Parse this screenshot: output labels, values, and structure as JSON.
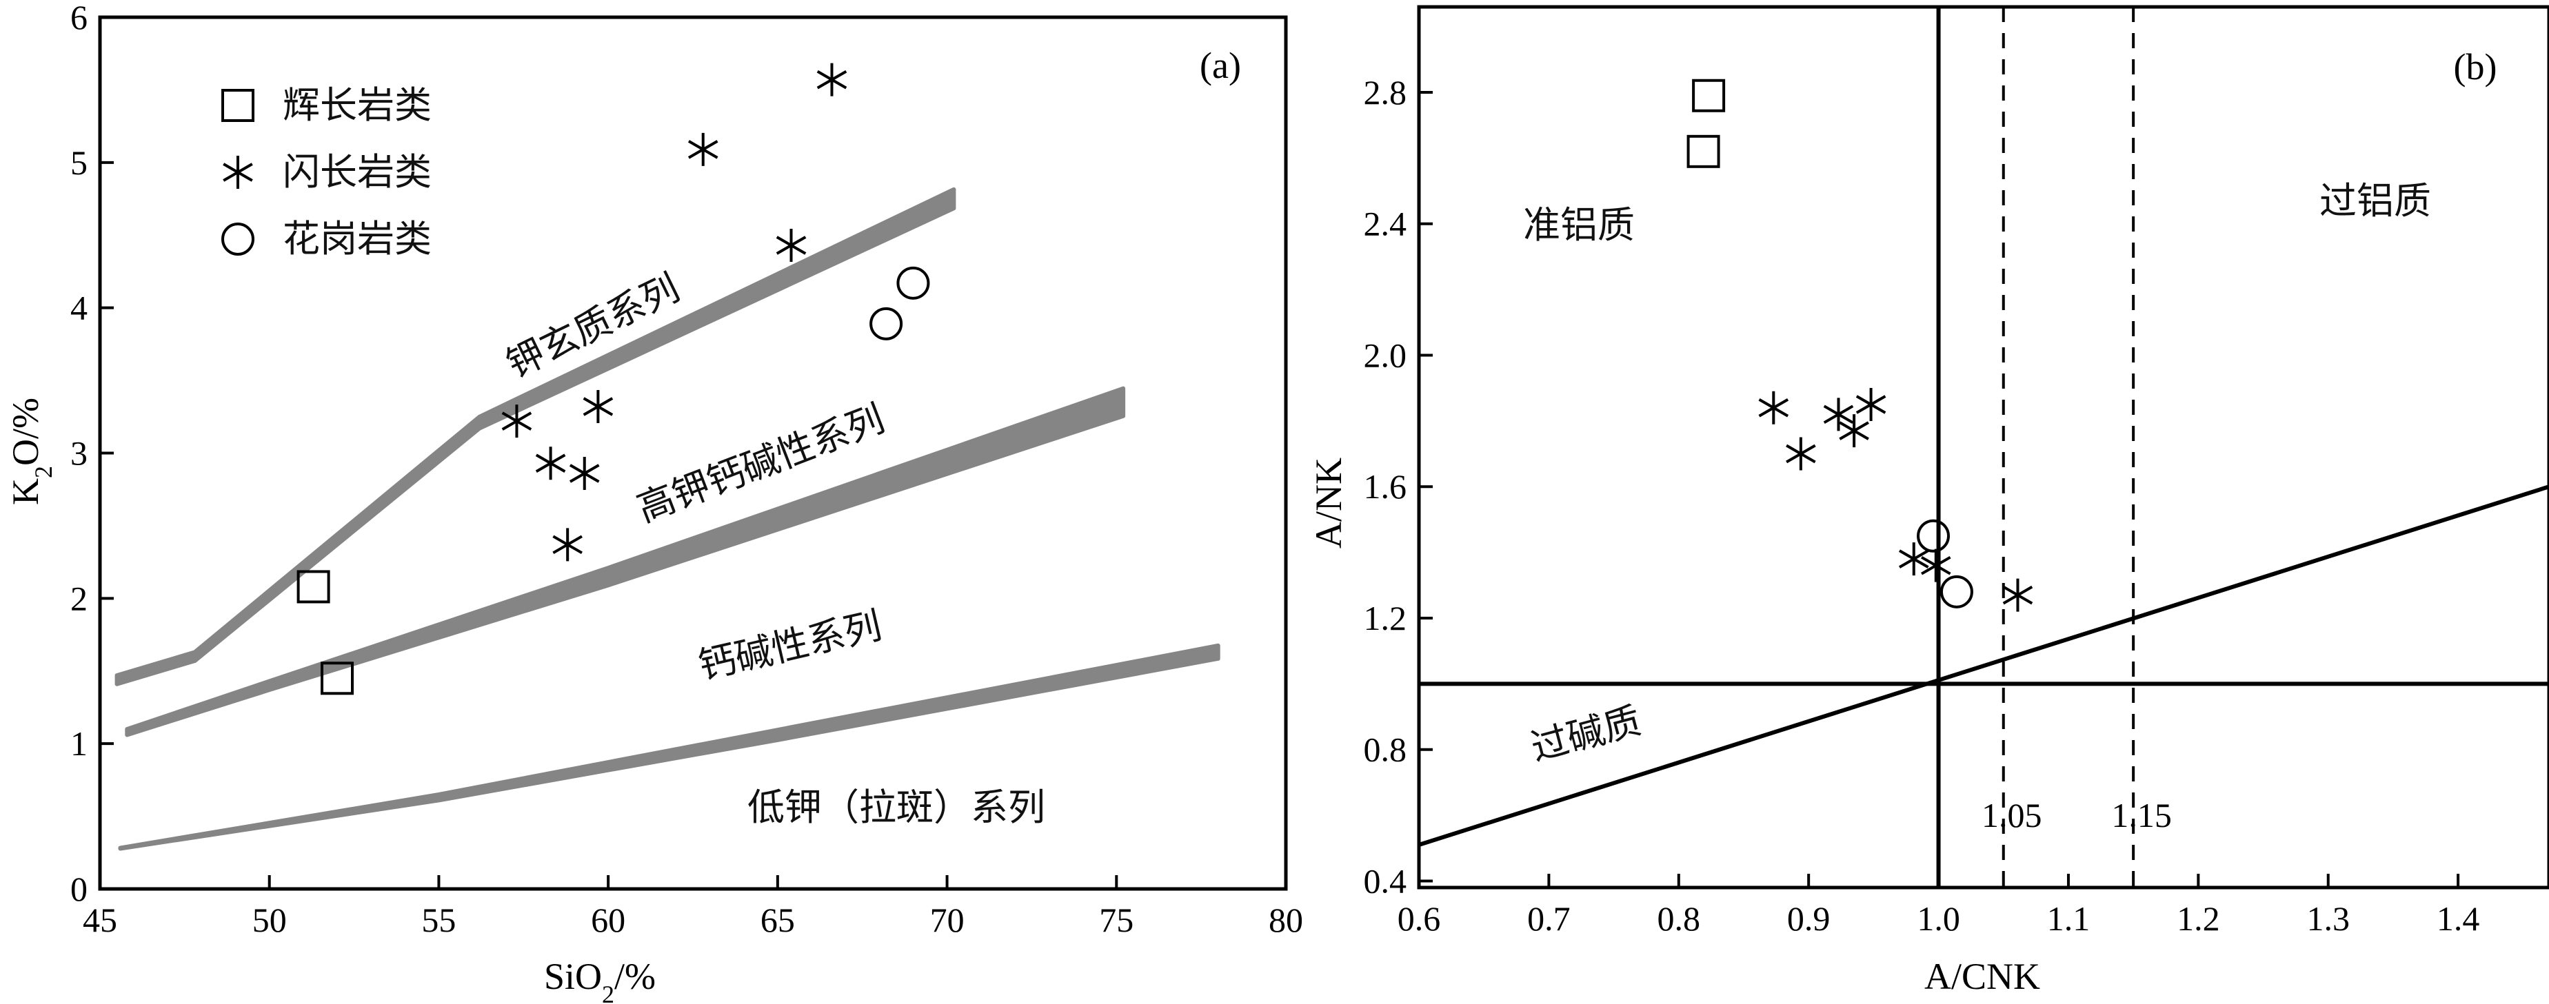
{
  "figure": {
    "panels": [
      {
        "id": "a",
        "label": "(a)",
        "xlabel": "SiO2/%",
        "ylabel": "K2O/%",
        "xlim": [
          45,
          80
        ],
        "ylim": [
          0,
          6
        ],
        "xticks": [
          45,
          50,
          55,
          60,
          65,
          70,
          75,
          80
        ],
        "yticks": [
          0,
          1,
          2,
          3,
          4,
          5,
          6
        ],
        "legend": [
          {
            "label": "辉长岩类",
            "marker": "square"
          },
          {
            "label": "闪长岩类",
            "marker": "asterisk"
          },
          {
            "label": "花岗岩类",
            "marker": "circle"
          }
        ],
        "series_labels": [
          "钾玄质系列",
          "高钾钙碱性系列",
          "钙碱性系列",
          "低钾（拉斑）系列"
        ]
      },
      {
        "id": "b",
        "label": "(b)",
        "xlabel": "A/CNK",
        "ylabel": "A/NK",
        "xlim": [
          0.6,
          1.47
        ],
        "ylim": [
          0.38,
          3.06
        ],
        "xticks": [
          0.6,
          0.7,
          0.8,
          0.9,
          1.0,
          1.1,
          1.2,
          1.3,
          1.4
        ],
        "yticks": [
          0.4,
          0.8,
          1.2,
          1.6,
          2.0,
          2.4,
          2.8
        ],
        "region_labels": [
          "准铝质",
          "过铝质",
          "过碱质"
        ],
        "line_labels": [
          "1.05",
          "1.15"
        ]
      }
    ]
  },
  "chart_data": [
    {
      "type": "scatter",
      "panel": "a",
      "xlabel": "SiO2/%",
      "ylabel": "K2O/%",
      "xlim": [
        45,
        80
      ],
      "ylim": [
        0,
        6
      ],
      "grid": false,
      "legend_position": "top-left",
      "series": [
        {
          "name": "辉长岩类",
          "marker": "square",
          "x": [
            51.3,
            52.0
          ],
          "y": [
            2.08,
            1.45
          ]
        },
        {
          "name": "闪长岩类",
          "marker": "asterisk",
          "x": [
            57.3,
            58.3,
            58.8,
            59.3,
            59.7,
            62.8,
            65.4,
            66.6
          ],
          "y": [
            3.22,
            2.93,
            2.37,
            2.86,
            3.32,
            5.09,
            4.43,
            5.57
          ]
        },
        {
          "name": "花岗岩类",
          "marker": "circle",
          "x": [
            68.2,
            69.0
          ],
          "y": [
            3.89,
            4.17
          ]
        }
      ],
      "boundaries": [
        {
          "label": "钾玄质系列",
          "x": [
            45.5,
            47.8,
            56.2,
            70.2
          ],
          "y": [
            1.44,
            1.6,
            3.21,
            4.75
          ],
          "thickness": [
            0.06,
            0.06,
            0.08,
            0.13
          ]
        },
        {
          "label": "高钾钙碱性系列",
          "x": [
            45.8,
            50.0,
            60.0,
            75.2
          ],
          "y": [
            1.08,
            1.4,
            2.15,
            3.35
          ],
          "thickness": [
            0.04,
            0.06,
            0.12,
            0.19
          ]
        },
        {
          "label": "钙碱性系列",
          "x": [
            45.6,
            55.0,
            65.0,
            78.0
          ],
          "y": [
            0.28,
            0.63,
            1.06,
            1.63
          ],
          "thickness": [
            0.005,
            0.04,
            0.07,
            0.09
          ]
        }
      ]
    },
    {
      "type": "scatter",
      "panel": "b",
      "xlabel": "A/CNK",
      "ylabel": "A/NK",
      "xlim": [
        0.6,
        1.47
      ],
      "ylim": [
        0.38,
        3.06
      ],
      "grid": false,
      "series": [
        {
          "name": "辉长岩类",
          "marker": "square",
          "x": [
            0.823,
            0.819
          ],
          "y": [
            2.79,
            2.62
          ]
        },
        {
          "name": "闪长岩类",
          "marker": "asterisk",
          "x": [
            0.873,
            0.894,
            0.923,
            0.935,
            0.948,
            0.981,
            0.998,
            1.061
          ],
          "y": [
            1.84,
            1.7,
            1.82,
            1.77,
            1.85,
            1.38,
            1.36,
            1.27
          ]
        },
        {
          "name": "花岗岩类",
          "marker": "circle",
          "x": [
            0.996,
            1.014
          ],
          "y": [
            1.45,
            1.28
          ]
        }
      ],
      "reference_lines": [
        {
          "type": "vertical",
          "x": 1.0,
          "style": "solid"
        },
        {
          "type": "horizontal",
          "y": 1.0,
          "style": "solid"
        },
        {
          "type": "vertical",
          "x": 1.05,
          "style": "dashed",
          "label": "1.05"
        },
        {
          "type": "vertical",
          "x": 1.15,
          "style": "dashed",
          "label": "1.15"
        },
        {
          "type": "line",
          "x": [
            0.6,
            1.47
          ],
          "y": [
            0.51,
            1.6
          ],
          "style": "solid"
        }
      ]
    }
  ]
}
